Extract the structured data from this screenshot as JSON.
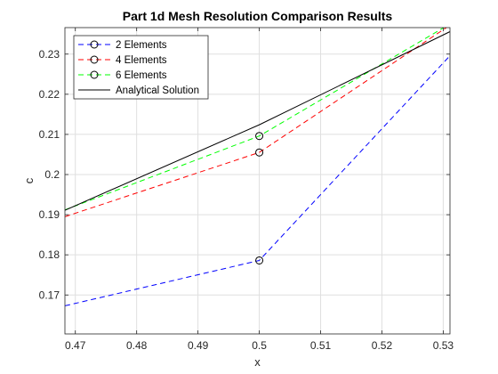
{
  "chart_data": {
    "type": "line",
    "title": "Part 1d Mesh Resolution Comparison Results",
    "xlabel": "x",
    "ylabel": "c",
    "xlim": [
      0.4683,
      0.5311
    ],
    "ylim": [
      0.1603,
      0.2366
    ],
    "xticks": [
      0.47,
      0.48,
      0.49,
      0.5,
      0.51,
      0.52,
      0.53
    ],
    "xtick_labels": [
      "0.47",
      "0.48",
      "0.49",
      "0.5",
      "0.51",
      "0.52",
      "0.53"
    ],
    "yticks": [
      0.17,
      0.18,
      0.19,
      0.2,
      0.21,
      0.22,
      0.23
    ],
    "ytick_labels": [
      "0.17",
      "0.18",
      "0.19",
      "0.2",
      "0.21",
      "0.22",
      "0.23"
    ],
    "grid": true,
    "legend_position": "top-left",
    "series": [
      {
        "name": "2 Elements",
        "color": "#0000ff",
        "dash": "dashed",
        "x": [
          0.4683,
          0.5,
          0.5311
        ],
        "y": [
          0.1673,
          0.1786,
          0.2296
        ],
        "markers": [
          [
            0.5,
            0.1786
          ]
        ]
      },
      {
        "name": "4 Elements",
        "color": "#ff0000",
        "dash": "dashed",
        "x": [
          0.4683,
          0.5,
          0.5311
        ],
        "y": [
          0.1895,
          0.2055,
          0.2372
        ],
        "markers": [
          [
            0.5,
            0.2055
          ]
        ]
      },
      {
        "name": "6 Elements",
        "color": "#00ff00",
        "dash": "dashed",
        "x": [
          0.4683,
          0.5,
          0.5311
        ],
        "y": [
          0.1912,
          0.2096,
          0.2375
        ],
        "markers": [
          [
            0.5,
            0.2096
          ]
        ]
      },
      {
        "name": "Analytical Solution",
        "color": "#000000",
        "dash": "solid",
        "x": [
          0.4683,
          0.5,
          0.5311
        ],
        "y": [
          0.1911,
          0.2124,
          0.2356
        ],
        "markers": []
      }
    ]
  }
}
